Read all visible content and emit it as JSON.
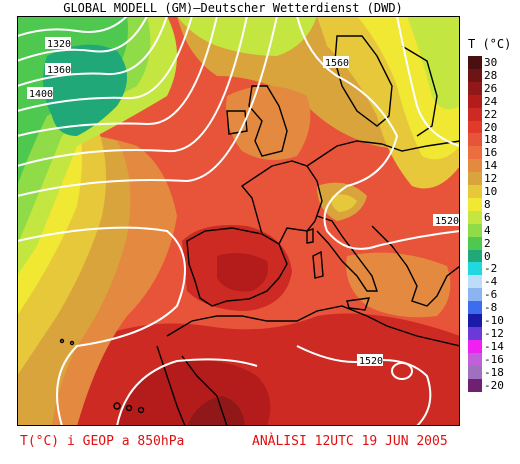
{
  "header": {
    "title": "GLOBAL MODELL (GM)—Deutscher Wetterdienst (DWD)"
  },
  "legend": {
    "title": "T (°C)",
    "levels": [
      {
        "label": "30",
        "color": "#4a1010"
      },
      {
        "label": "28",
        "color": "#6e1414"
      },
      {
        "label": "26",
        "color": "#901818"
      },
      {
        "label": "24",
        "color": "#b41c1c"
      },
      {
        "label": "22",
        "color": "#cc2a22"
      },
      {
        "label": "20",
        "color": "#e03a2a"
      },
      {
        "label": "18",
        "color": "#e8543a"
      },
      {
        "label": "16",
        "color": "#ea6e3e"
      },
      {
        "label": "14",
        "color": "#e48a40"
      },
      {
        "label": "12",
        "color": "#daa43c"
      },
      {
        "label": "10",
        "color": "#e6c83a"
      },
      {
        "label": "8",
        "color": "#f0e832"
      },
      {
        "label": "6",
        "color": "#c4e640"
      },
      {
        "label": "4",
        "color": "#90dc48"
      },
      {
        "label": "2",
        "color": "#4ec84e"
      },
      {
        "label": "0",
        "color": "#20a878"
      },
      {
        "label": "-2",
        "color": "#20d8e0"
      },
      {
        "label": "-4",
        "color": "#bcdcf8"
      },
      {
        "label": "-6",
        "color": "#8cb4f0"
      },
      {
        "label": "-8",
        "color": "#3c6cf0"
      },
      {
        "label": "-10",
        "color": "#1a1aa8"
      },
      {
        "label": "-12",
        "color": "#6a3ad8"
      },
      {
        "label": "-14",
        "color": "#f020f0"
      },
      {
        "label": "-16",
        "color": "#c060d8"
      },
      {
        "label": "-18",
        "color": "#a070c0"
      },
      {
        "label": "-20",
        "color": "#702070"
      }
    ]
  },
  "isolines": {
    "labels": [
      "1320",
      "1360",
      "1400",
      "1560",
      "1520",
      "1520"
    ]
  },
  "footer": {
    "variable": "T(°C) i GEOP a 850hPa",
    "analysis": "ANÀLISI 12UTC 19 JUN 2005"
  },
  "colors": {
    "footer_text": "#e01010",
    "isoline": "#ffffff",
    "coastline": "#000000"
  }
}
